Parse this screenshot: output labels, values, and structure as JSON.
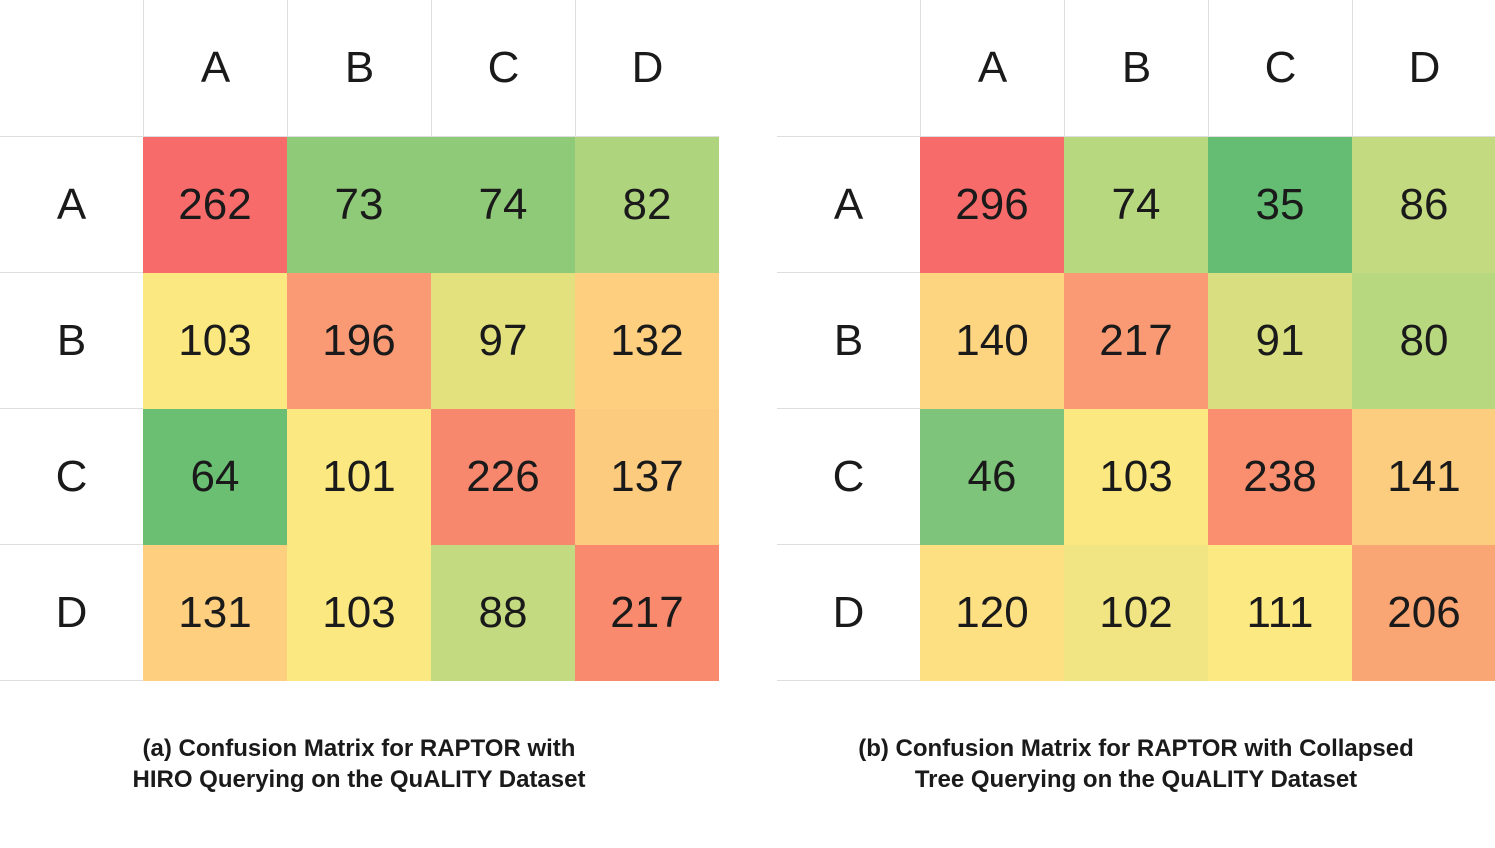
{
  "chart_data": [
    {
      "type": "heatmap",
      "title": "",
      "caption_lines": [
        "(a) Confusion Matrix for RAPTOR with",
        "HIRO Querying on the QuALITY Dataset"
      ],
      "columns": [
        "A",
        "B",
        "C",
        "D"
      ],
      "rows": [
        "A",
        "B",
        "C",
        "D"
      ],
      "values": [
        [
          262,
          73,
          74,
          82
        ],
        [
          103,
          196,
          97,
          132
        ],
        [
          64,
          101,
          226,
          137
        ],
        [
          131,
          103,
          88,
          217
        ]
      ],
      "colors": [
        [
          "#f76b6b",
          "#8fca78",
          "#8fca78",
          "#aed57e"
        ],
        [
          "#fbe880",
          "#f99a74",
          "#e3e17e",
          "#fdcf7f"
        ],
        [
          "#6bbf73",
          "#fbe880",
          "#f7876d",
          "#fdcb7d"
        ],
        [
          "#fdcf7f",
          "#fbe880",
          "#c3da80",
          "#f98a6d"
        ]
      ]
    },
    {
      "type": "heatmap",
      "title": "",
      "caption_lines": [
        "(b) Confusion Matrix for RAPTOR with Collapsed",
        "Tree Querying on the QuALITY Dataset"
      ],
      "columns": [
        "A",
        "B",
        "C",
        "D"
      ],
      "rows": [
        "A",
        "B",
        "C",
        "D"
      ],
      "values": [
        [
          296,
          74,
          35,
          86
        ],
        [
          140,
          217,
          91,
          80
        ],
        [
          46,
          103,
          238,
          141
        ],
        [
          120,
          102,
          111,
          206
        ]
      ],
      "colors": [
        [
          "#f76b6b",
          "#b8d880",
          "#64bd73",
          "#c3da80"
        ],
        [
          "#fdd480",
          "#f99a74",
          "#d9df80",
          "#b8d880"
        ],
        [
          "#7ec47a",
          "#fbe880",
          "#f98f6f",
          "#fdcd7f"
        ],
        [
          "#fde081",
          "#f0e582",
          "#fde981",
          "#f9a574"
        ]
      ]
    }
  ]
}
